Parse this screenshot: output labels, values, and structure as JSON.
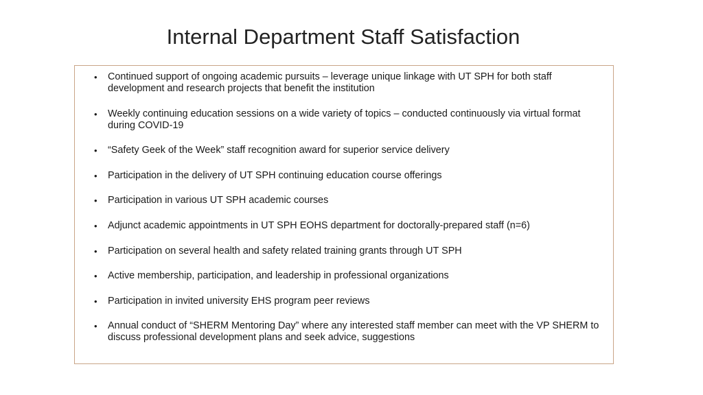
{
  "slide": {
    "title": "Internal Department Staff Satisfaction",
    "bullet_glyph": "•",
    "bullets": [
      "Continued support of ongoing academic pursuits – leverage unique linkage with UT SPH for both staff development and research projects that benefit the institution",
      "Weekly continuing education sessions on a wide variety of topics – conducted continuously via virtual format during COVID-19",
      "“Safety Geek of the Week” staff recognition award for superior service delivery",
      "Participation in the delivery of UT SPH continuing education course offerings",
      "Participation in various UT SPH academic courses",
      "Adjunct academic appointments in UT SPH EOHS department for doctorally-prepared staff (n=6)",
      "Participation on several health and safety related training grants through UT SPH",
      "Active membership, participation, and leadership in professional organizations",
      "Participation in invited university EHS program peer reviews",
      "Annual conduct of “SHERM Mentoring Day” where any interested staff member can meet with the VP SHERM to discuss professional development plans and seek advice, suggestions"
    ],
    "border_color": "#c9a487"
  }
}
